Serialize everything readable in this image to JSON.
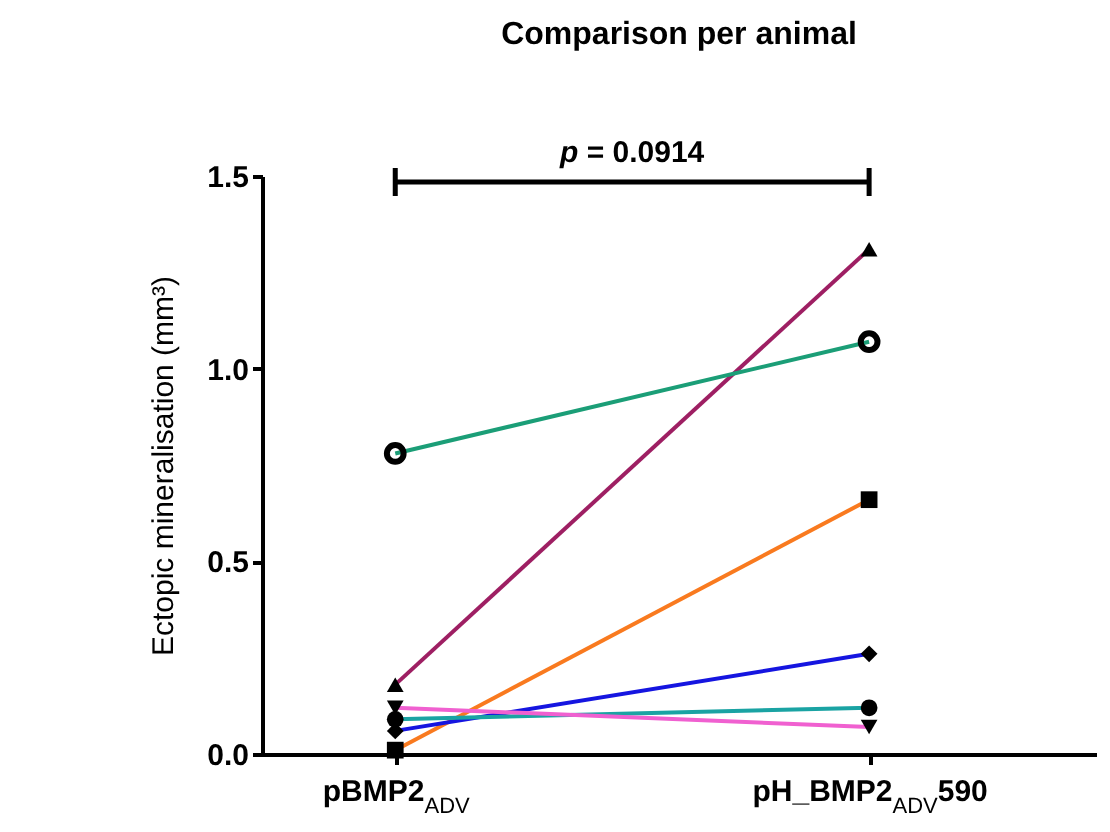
{
  "chart_data": {
    "type": "line",
    "title": "Comparison per animal",
    "ylabel": "Ectopic  mineralisation (mm³)",
    "categories": [
      "pBMP2$_{ADV}$",
      "pH_BMP2$_{ADV}$590"
    ],
    "series": [
      {
        "color": "#9e1f63",
        "marker": "triangle",
        "values": [
          0.18,
          1.31
        ]
      },
      {
        "color": "#1b9e77",
        "marker": "circle-open",
        "values": [
          0.78,
          1.07
        ]
      },
      {
        "color": "#f97a1f",
        "marker": "square",
        "values": [
          0.01,
          0.66
        ]
      },
      {
        "color": "#1515e0",
        "marker": "diamond",
        "values": [
          0.06,
          0.26
        ]
      },
      {
        "color": "#1aa3a3",
        "marker": "circle",
        "values": [
          0.09,
          0.12
        ]
      },
      {
        "color": "#f060d0",
        "marker": "triangle-down",
        "values": [
          0.12,
          0.07
        ]
      }
    ],
    "ylim": [
      0,
      1.5
    ],
    "yticks": [
      {
        "value": 0,
        "label": "0.0"
      },
      {
        "value": 0.5,
        "label": "0.5"
      },
      {
        "value": 1,
        "label": "1.0"
      },
      {
        "value": 1.5,
        "label": "1.5"
      }
    ],
    "annotations": [
      "p = 0.0914"
    ],
    "grid": false,
    "line_style": "solid"
  }
}
